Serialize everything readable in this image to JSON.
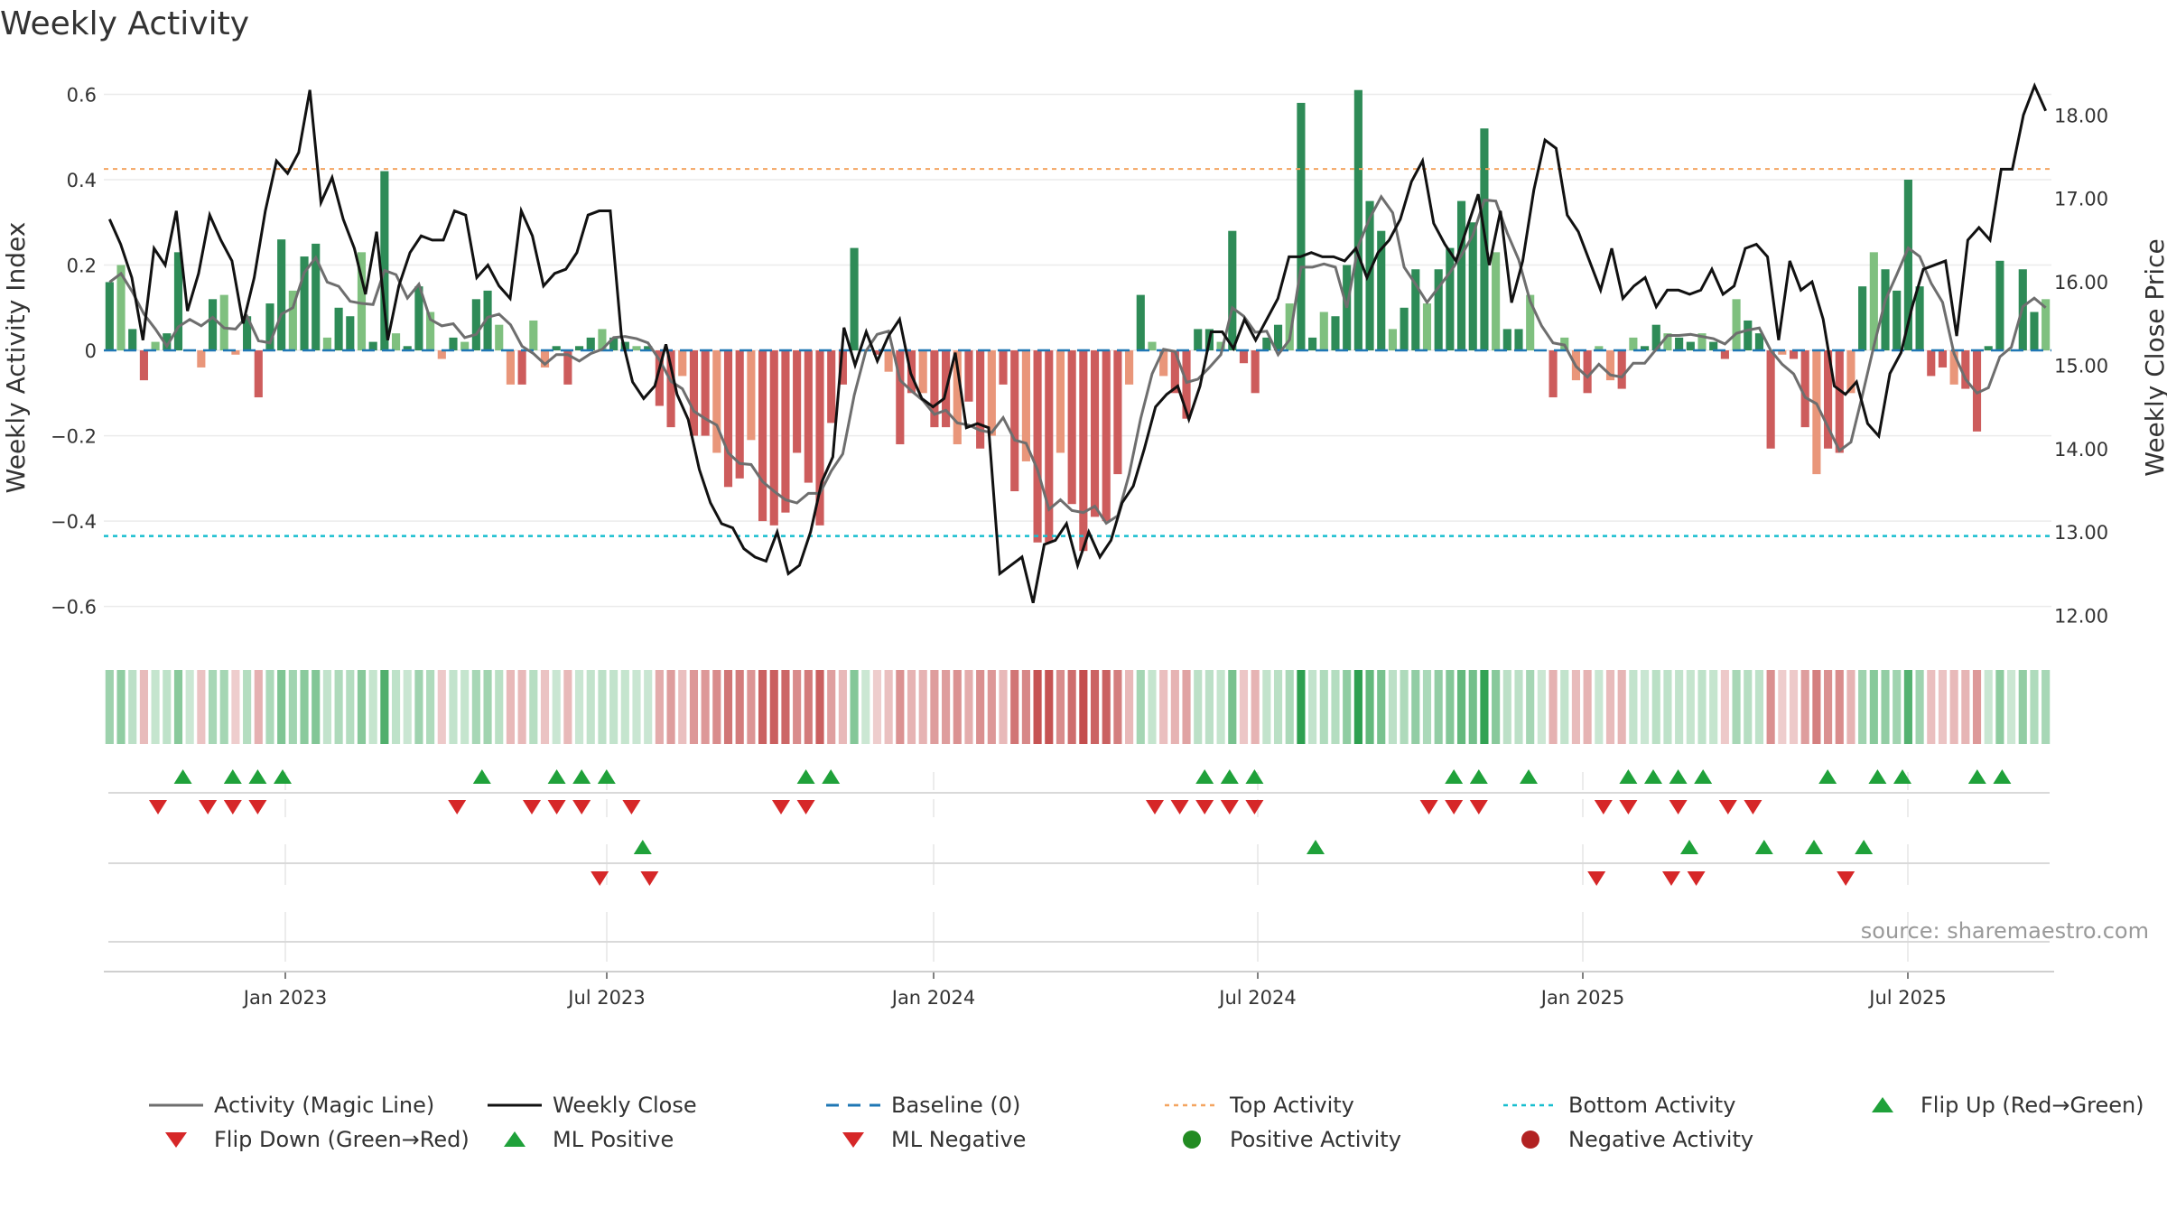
{
  "chart_data": {
    "type": "bar",
    "title": "Weekly Activity",
    "ylabel": "Weekly Activity Index",
    "y2label": "Weekly Close Price",
    "ylim": [
      -0.66,
      0.62
    ],
    "y2lim": [
      11.8,
      18.35
    ],
    "yticks": [
      -0.6,
      -0.4,
      -0.2,
      0,
      0.2,
      0.4,
      0.6
    ],
    "ytick_labels": [
      "−0.6",
      "−0.4",
      "−0.2",
      "0",
      "0.2",
      "0.4",
      "0.6"
    ],
    "y2ticks": [
      12,
      13,
      14,
      15,
      16,
      17,
      18
    ],
    "y2tick_labels": [
      "12.00",
      "13.00",
      "14.00",
      "15.00",
      "16.00",
      "17.00",
      "18.00"
    ],
    "xticks": [
      "Jan 2023",
      "Jul 2023",
      "Jan 2024",
      "Jul 2024",
      "Jan 2025",
      "Jul 2025"
    ],
    "top_activity": 0.425,
    "bottom_activity": -0.435,
    "source": "source: sharemaestro.com",
    "colors": {
      "pos_strong": "#2e8b57",
      "pos_light": "#7fc07f",
      "neg_strong": "#cd5c5c",
      "neg_light": "#e9967a",
      "magic": "#6e6e6e",
      "close": "#111111",
      "baseline": "#1f77b4",
      "top": "#f4a460",
      "bottom": "#17becf",
      "up": "#1fa13a",
      "down": "#d62728"
    },
    "activity": [
      0.16,
      0.2,
      0.05,
      -0.07,
      0.02,
      0.04,
      0.23,
      0.0,
      -0.04,
      0.12,
      0.13,
      -0.01,
      0.08,
      -0.11,
      0.11,
      0.26,
      0.14,
      0.22,
      0.25,
      0.03,
      0.1,
      0.08,
      0.23,
      0.02,
      0.42,
      0.04,
      0.01,
      0.15,
      0.09,
      -0.02,
      0.03,
      0.02,
      0.12,
      0.14,
      0.06,
      -0.08,
      -0.08,
      0.07,
      -0.04,
      0.01,
      -0.08,
      0.01,
      0.03,
      0.05,
      0.03,
      0.02,
      0.01,
      0.01,
      -0.13,
      -0.18,
      -0.06,
      -0.2,
      -0.2,
      -0.24,
      -0.32,
      -0.3,
      -0.21,
      -0.4,
      -0.41,
      -0.38,
      -0.24,
      -0.31,
      -0.41,
      -0.17,
      -0.08,
      0.24,
      0.0,
      -0.01,
      -0.05,
      -0.22,
      -0.1,
      -0.1,
      -0.18,
      -0.18,
      -0.22,
      -0.12,
      -0.23,
      -0.2,
      -0.08,
      -0.33,
      -0.26,
      -0.45,
      -0.45,
      -0.24,
      -0.36,
      -0.47,
      -0.39,
      -0.4,
      -0.29,
      -0.08,
      0.13,
      0.02,
      -0.06,
      -0.1,
      -0.16,
      0.05,
      0.05,
      0.02,
      0.28,
      -0.03,
      -0.1,
      0.03,
      0.06,
      0.11,
      0.58,
      0.03,
      0.09,
      0.08,
      0.2,
      0.61,
      0.35,
      0.28,
      0.05,
      0.1,
      0.19,
      0.11,
      0.19,
      0.24,
      0.35,
      0.3,
      0.52,
      0.23,
      0.05,
      0.05,
      0.13,
      0.0,
      -0.11,
      0.03,
      -0.07,
      -0.1,
      0.01,
      -0.07,
      -0.09,
      0.03,
      0.01,
      0.06,
      0.04,
      0.03,
      0.02,
      0.04,
      0.02,
      -0.02,
      0.12,
      0.07,
      0.04,
      -0.23,
      -0.01,
      -0.02,
      -0.18,
      -0.29,
      -0.23,
      -0.24,
      -0.1,
      0.15,
      0.23,
      0.19,
      0.14,
      0.4,
      0.15,
      -0.06,
      -0.04,
      -0.08,
      -0.09,
      -0.19,
      0.01,
      0.21,
      0.0,
      0.19,
      0.09,
      0.12
    ],
    "close": [
      16.75,
      16.45,
      16.05,
      15.3,
      16.4,
      16.2,
      16.85,
      15.65,
      16.1,
      16.8,
      16.5,
      16.25,
      15.5,
      16.05,
      16.85,
      17.45,
      17.3,
      17.55,
      18.3,
      16.95,
      17.25,
      16.75,
      16.4,
      15.85,
      16.6,
      15.3,
      15.95,
      16.35,
      16.55,
      16.5,
      16.5,
      16.85,
      16.8,
      16.05,
      16.2,
      15.95,
      15.8,
      16.85,
      16.55,
      15.95,
      16.1,
      16.15,
      16.35,
      16.8,
      16.85,
      16.85,
      15.35,
      14.8,
      14.6,
      14.75,
      15.25,
      14.65,
      14.35,
      13.75,
      13.35,
      13.1,
      13.05,
      12.8,
      12.7,
      12.65,
      13.0,
      12.5,
      12.6,
      13.0,
      13.6,
      13.9,
      15.45,
      15.0,
      15.4,
      15.05,
      15.35,
      15.55,
      14.9,
      14.6,
      14.5,
      14.6,
      15.15,
      14.25,
      14.3,
      14.25,
      12.5,
      12.6,
      12.7,
      12.15,
      12.85,
      12.9,
      13.1,
      12.6,
      13.0,
      12.7,
      12.9,
      13.35,
      13.55,
      14.0,
      14.5,
      14.65,
      14.75,
      14.35,
      14.75,
      15.4,
      15.4,
      15.2,
      15.55,
      15.3,
      15.55,
      15.8,
      16.3,
      16.3,
      16.35,
      16.3,
      16.3,
      16.25,
      16.4,
      16.05,
      16.35,
      16.5,
      16.75,
      17.2,
      17.45,
      16.7,
      16.45,
      16.25,
      16.65,
      17.05,
      16.2,
      16.85,
      15.75,
      16.25,
      17.1,
      17.7,
      17.6,
      16.8,
      16.6,
      16.25,
      15.9,
      16.4,
      15.8,
      15.95,
      16.05,
      15.7,
      15.9,
      15.9,
      15.85,
      15.9,
      16.15,
      15.85,
      15.95,
      16.4,
      16.45,
      16.3,
      15.3,
      16.25,
      15.9,
      16.0,
      15.55,
      14.75,
      14.65,
      14.8,
      14.3,
      14.15,
      14.9,
      15.15,
      15.7,
      16.15,
      16.2,
      16.25,
      15.35,
      16.5,
      16.65,
      16.5,
      17.35,
      17.35,
      18.0,
      18.35,
      18.05
    ],
    "flip_up_row1": [
      1,
      3,
      4,
      5,
      13,
      16,
      17,
      18,
      26,
      27,
      42,
      43,
      44,
      52,
      53,
      55,
      59,
      60,
      61,
      62,
      67,
      69,
      70,
      73,
      74
    ],
    "flip_down_row1": [
      0,
      2,
      3,
      4,
      12,
      15,
      16,
      17,
      19,
      25,
      26,
      40,
      41,
      42,
      43,
      44,
      51,
      52,
      53,
      58,
      59,
      61,
      63,
      64
    ],
    "ml_positive": [
      18,
      45,
      60,
      63,
      65,
      67
    ],
    "ml_negative": [
      17,
      19,
      57,
      60,
      61,
      67
    ],
    "legend_row1": [
      "Activity (Magic Line)",
      "Weekly Close",
      "Baseline (0)",
      "Top Activity",
      "Bottom Activity",
      "Flip Up (Red→Green)"
    ],
    "legend_row2": [
      "Flip Down (Green→Red)",
      "ML Positive",
      "ML Negative",
      "Positive Activity",
      "Negative Activity"
    ]
  }
}
